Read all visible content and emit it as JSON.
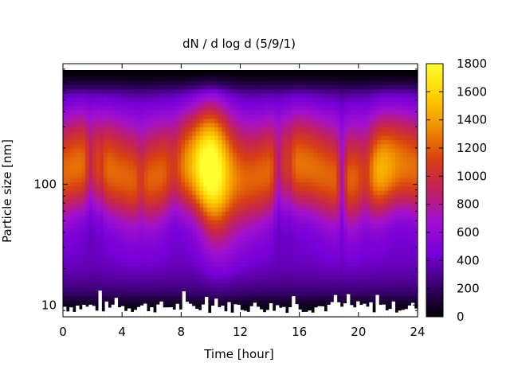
{
  "chart_data": {
    "type": "heatmap",
    "title": "dN / d log d (5/9/1)",
    "xlabel": "Time [hour]",
    "ylabel": "Particle size [nm]",
    "xlim": [
      0,
      24
    ],
    "ylim": [
      8,
      1000
    ],
    "y_scale": "log",
    "x_ticks": [
      0,
      4,
      8,
      12,
      16,
      20,
      24
    ],
    "x_tick_labels": [
      "0",
      "4",
      "8",
      "12",
      "16",
      "20",
      "24"
    ],
    "y_ticks": [
      10,
      100
    ],
    "y_tick_labels": [
      "10",
      "100"
    ],
    "colorbar": {
      "range": [
        0,
        1800
      ],
      "ticks": [
        0,
        200,
        400,
        600,
        800,
        1000,
        1200,
        1400,
        1600,
        1800
      ],
      "tick_labels": [
        "0",
        "200",
        "400",
        "600",
        "800",
        "1000",
        "1200",
        "1400",
        "1600",
        "1800"
      ],
      "colormap": [
        "#000000",
        "#3a0070",
        "#7800d8",
        "#a010d0",
        "#c02060",
        "#d84010",
        "#f09000",
        "#ffd000",
        "#ffff30"
      ]
    },
    "dominant_mode": {
      "peak_size_nm": 100,
      "peak_time_hour": 10,
      "peak_value": 1650,
      "description_values": {
        "morning_level": 1050,
        "afternoon_level": 1000,
        "evening_peak_hour": 21.5,
        "evening_peak_value": 1250
      }
    },
    "grid": false,
    "legend": "colorbar-right"
  }
}
